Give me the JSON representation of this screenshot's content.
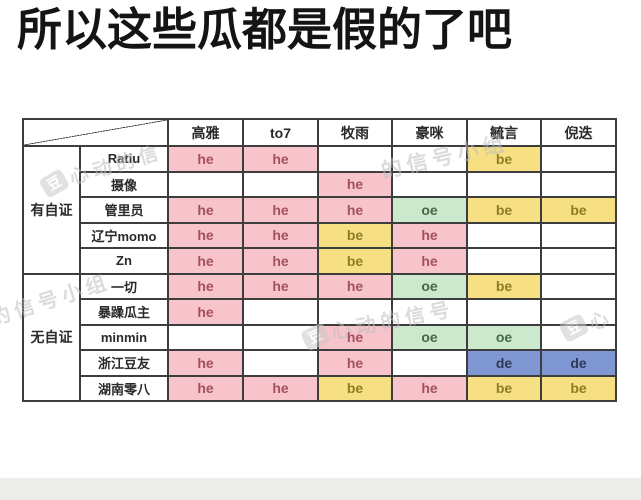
{
  "title": "所以这些瓜都是假的了吧",
  "chart_data": {
    "type": "table",
    "title": "所以这些瓜都是假的了吧",
    "columns": [
      "高雅",
      "to7",
      "牧雨",
      "豪咪",
      "毓言",
      "倪迭"
    ],
    "groups": [
      {
        "label": "有自证",
        "rows": [
          {
            "name": "Ratiu",
            "cells": [
              "he",
              "he",
              "",
              "",
              "be",
              ""
            ]
          },
          {
            "name": "摄像",
            "cells": [
              "",
              "",
              "he",
              "",
              "",
              ""
            ]
          },
          {
            "name": "管里员",
            "cells": [
              "he",
              "he",
              "he",
              "oe",
              "be",
              "be"
            ]
          },
          {
            "name": "辽宁momo",
            "cells": [
              "he",
              "he",
              "be",
              "he",
              "",
              ""
            ]
          },
          {
            "name": "Zn",
            "cells": [
              "he",
              "he",
              "be",
              "he",
              "",
              ""
            ]
          }
        ]
      },
      {
        "label": "无自证",
        "rows": [
          {
            "name": "一切",
            "cells": [
              "he",
              "he",
              "he",
              "oe",
              "be",
              ""
            ]
          },
          {
            "name": "暴躁瓜主",
            "cells": [
              "he",
              "",
              "",
              "",
              "",
              ""
            ]
          },
          {
            "name": "minmin",
            "cells": [
              "",
              "",
              "he",
              "oe",
              "oe",
              ""
            ]
          },
          {
            "name": "浙江豆友",
            "cells": [
              "he",
              "",
              "he",
              "",
              "de",
              "de"
            ]
          },
          {
            "name": "湖南零八",
            "cells": [
              "he",
              "he",
              "be",
              "he",
              "be",
              "be"
            ]
          }
        ]
      }
    ],
    "cell_styles": {
      "he": {
        "bg": "#f8c4cb",
        "fg": "#a3525c"
      },
      "oe": {
        "bg": "#cde9cd",
        "fg": "#46684a"
      },
      "be": {
        "bg": "#f6e083",
        "fg": "#8f7d26"
      },
      "de": {
        "bg": "#7f98d4",
        "fg": "#2f3a55"
      }
    }
  },
  "watermark": {
    "icon_glyph": "豆",
    "items": [
      "心动的信",
      "的信号小组",
      "的信号小组",
      "心动的信号",
      "心"
    ]
  },
  "colors": {
    "border": "#3d3d3d",
    "title": "#141414",
    "bottom_strip": "#ededea"
  }
}
